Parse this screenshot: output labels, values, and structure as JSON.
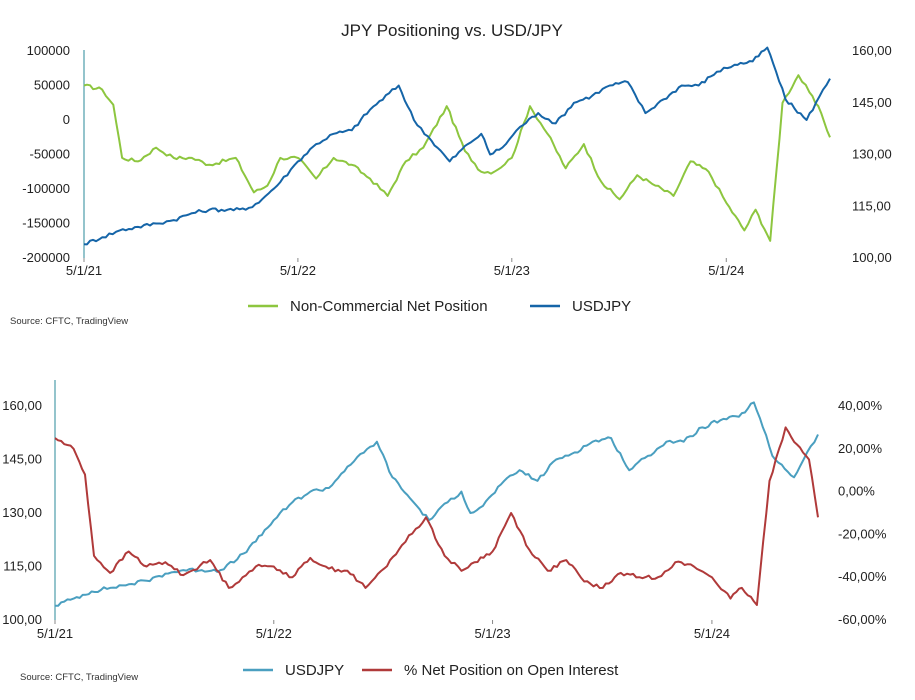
{
  "chart_data": [
    {
      "type": "line",
      "title": "JPY Positioning vs. USD/JPY",
      "source": "Source: CFTC, TradingView",
      "x_ticks": [
        "5/1/21",
        "5/1/22",
        "5/1/23",
        "5/1/24"
      ],
      "x_range": [
        "2021-05-01",
        "2024-10-25"
      ],
      "y_left": {
        "ticks": [
          "100000",
          "50000",
          "0",
          "-50000",
          "-100000",
          "-150000",
          "-200000"
        ],
        "range": [
          -200000,
          100000
        ]
      },
      "y_right": {
        "ticks": [
          "160,00",
          "145,00",
          "130,00",
          "115,00",
          "100,00"
        ],
        "range": [
          100,
          160
        ]
      },
      "series": [
        {
          "name": "Non-Commercial Net Position",
          "axis": "left",
          "color": "#8dc63f",
          "points": [
            [
              "2021-05-01",
              50000
            ],
            [
              "2021-06-01",
              44000
            ],
            [
              "2021-06-20",
              22000
            ],
            [
              "2021-07-05",
              -55000
            ],
            [
              "2021-08-01",
              -60000
            ],
            [
              "2021-09-01",
              -40000
            ],
            [
              "2021-10-01",
              -55000
            ],
            [
              "2021-11-01",
              -55000
            ],
            [
              "2021-12-01",
              -65000
            ],
            [
              "2022-01-15",
              -55000
            ],
            [
              "2022-02-15",
              -105000
            ],
            [
              "2022-03-10",
              -95000
            ],
            [
              "2022-04-01",
              -55000
            ],
            [
              "2022-05-01",
              -55000
            ],
            [
              "2022-06-01",
              -85000
            ],
            [
              "2022-07-01",
              -55000
            ],
            [
              "2022-08-01",
              -65000
            ],
            [
              "2022-09-01",
              -85000
            ],
            [
              "2022-10-01",
              -110000
            ],
            [
              "2022-11-01",
              -60000
            ],
            [
              "2022-12-01",
              -40000
            ],
            [
              "2023-01-10",
              20000
            ],
            [
              "2023-02-10",
              -45000
            ],
            [
              "2023-03-10",
              -75000
            ],
            [
              "2023-04-01",
              -75000
            ],
            [
              "2023-05-01",
              -55000
            ],
            [
              "2023-06-01",
              20000
            ],
            [
              "2023-07-01",
              -20000
            ],
            [
              "2023-08-01",
              -70000
            ],
            [
              "2023-09-01",
              -35000
            ],
            [
              "2023-10-01",
              -90000
            ],
            [
              "2023-11-01",
              -115000
            ],
            [
              "2023-12-01",
              -80000
            ],
            [
              "2024-01-01",
              -95000
            ],
            [
              "2024-02-01",
              -110000
            ],
            [
              "2024-03-01",
              -60000
            ],
            [
              "2024-04-01",
              -75000
            ],
            [
              "2024-05-01",
              -120000
            ],
            [
              "2024-06-01",
              -160000
            ],
            [
              "2024-06-20",
              -130000
            ],
            [
              "2024-07-15",
              -175000
            ],
            [
              "2024-08-05",
              25000
            ],
            [
              "2024-09-01",
              65000
            ],
            [
              "2024-09-20",
              40000
            ],
            [
              "2024-10-10",
              10000
            ],
            [
              "2024-10-25",
              -25000
            ]
          ]
        },
        {
          "name": "USDJPY",
          "axis": "right",
          "color": "#1565a8",
          "points": [
            [
              "2021-05-01",
              104
            ],
            [
              "2021-06-01",
              106
            ],
            [
              "2021-07-01",
              108
            ],
            [
              "2021-08-01",
              109
            ],
            [
              "2021-09-01",
              110
            ],
            [
              "2021-10-01",
              111
            ],
            [
              "2021-11-01",
              113
            ],
            [
              "2021-12-01",
              114
            ],
            [
              "2022-01-01",
              114
            ],
            [
              "2022-02-01",
              114
            ],
            [
              "2022-03-01",
              117
            ],
            [
              "2022-04-01",
              122
            ],
            [
              "2022-05-01",
              128
            ],
            [
              "2022-06-01",
              133
            ],
            [
              "2022-07-01",
              136
            ],
            [
              "2022-08-01",
              137
            ],
            [
              "2022-09-01",
              143
            ],
            [
              "2022-10-20",
              150
            ],
            [
              "2022-11-15",
              140
            ],
            [
              "2022-12-15",
              134
            ],
            [
              "2023-01-15",
              128
            ],
            [
              "2023-02-15",
              133
            ],
            [
              "2023-03-10",
              136
            ],
            [
              "2023-03-25",
              130
            ],
            [
              "2023-04-15",
              132
            ],
            [
              "2023-05-15",
              138
            ],
            [
              "2023-06-15",
              142
            ],
            [
              "2023-07-15",
              139
            ],
            [
              "2023-08-15",
              145
            ],
            [
              "2023-09-15",
              147
            ],
            [
              "2023-10-15",
              150
            ],
            [
              "2023-11-15",
              151
            ],
            [
              "2023-12-15",
              142
            ],
            [
              "2024-01-15",
              146
            ],
            [
              "2024-02-15",
              150
            ],
            [
              "2024-03-15",
              150
            ],
            [
              "2024-04-15",
              154
            ],
            [
              "2024-05-15",
              156
            ],
            [
              "2024-06-15",
              157
            ],
            [
              "2024-07-10",
              161
            ],
            [
              "2024-07-25",
              154
            ],
            [
              "2024-08-10",
              146
            ],
            [
              "2024-09-15",
              140
            ],
            [
              "2024-10-01",
              145
            ],
            [
              "2024-10-25",
              152
            ]
          ]
        }
      ]
    },
    {
      "type": "line",
      "title": "",
      "source": "Source: CFTC, TradingView",
      "x_ticks": [
        "5/1/21",
        "5/1/22",
        "5/1/23",
        "5/1/24"
      ],
      "x_range": [
        "2021-05-01",
        "2024-10-25"
      ],
      "y_left": {
        "ticks": [
          "160,00",
          "145,00",
          "130,00",
          "115,00",
          "100,00"
        ],
        "range": [
          100,
          160
        ]
      },
      "y_right": {
        "ticks": [
          "40,00%",
          "20,00%",
          "0,00%",
          "-20,00%",
          "-40,00%",
          "-60,00%"
        ],
        "range": [
          -60,
          40
        ]
      },
      "series": [
        {
          "name": "USDJPY",
          "axis": "left",
          "color": "#4a9fc0",
          "points": [
            [
              "2021-05-01",
              104
            ],
            [
              "2021-06-01",
              106
            ],
            [
              "2021-07-01",
              108
            ],
            [
              "2021-08-01",
              109
            ],
            [
              "2021-09-01",
              110
            ],
            [
              "2021-10-01",
              111
            ],
            [
              "2021-11-01",
              113
            ],
            [
              "2021-12-01",
              114
            ],
            [
              "2022-01-01",
              114
            ],
            [
              "2022-02-01",
              114
            ],
            [
              "2022-03-01",
              117
            ],
            [
              "2022-04-01",
              122
            ],
            [
              "2022-05-01",
              128
            ],
            [
              "2022-06-01",
              133
            ],
            [
              "2022-07-01",
              136
            ],
            [
              "2022-08-01",
              137
            ],
            [
              "2022-09-01",
              143
            ],
            [
              "2022-10-20",
              150
            ],
            [
              "2022-11-15",
              140
            ],
            [
              "2022-12-15",
              134
            ],
            [
              "2023-01-15",
              128
            ],
            [
              "2023-02-15",
              133
            ],
            [
              "2023-03-10",
              136
            ],
            [
              "2023-03-25",
              130
            ],
            [
              "2023-04-15",
              132
            ],
            [
              "2023-05-15",
              138
            ],
            [
              "2023-06-15",
              142
            ],
            [
              "2023-07-15",
              139
            ],
            [
              "2023-08-15",
              145
            ],
            [
              "2023-09-15",
              147
            ],
            [
              "2023-10-15",
              150
            ],
            [
              "2023-11-15",
              151
            ],
            [
              "2023-12-15",
              142
            ],
            [
              "2024-01-15",
              146
            ],
            [
              "2024-02-15",
              150
            ],
            [
              "2024-03-15",
              150
            ],
            [
              "2024-04-15",
              154
            ],
            [
              "2024-05-15",
              156
            ],
            [
              "2024-06-15",
              157
            ],
            [
              "2024-07-10",
              161
            ],
            [
              "2024-07-25",
              154
            ],
            [
              "2024-08-10",
              146
            ],
            [
              "2024-09-15",
              140
            ],
            [
              "2024-10-01",
              145
            ],
            [
              "2024-10-25",
              152
            ]
          ]
        },
        {
          "name": "% Net Position on Open Interest",
          "axis": "right",
          "color": "#b03a3a",
          "points": [
            [
              "2021-05-01",
              25
            ],
            [
              "2021-06-01",
              20
            ],
            [
              "2021-06-20",
              8
            ],
            [
              "2021-07-05",
              -30
            ],
            [
              "2021-08-01",
              -38
            ],
            [
              "2021-09-01",
              -28
            ],
            [
              "2021-10-01",
              -35
            ],
            [
              "2021-11-01",
              -33
            ],
            [
              "2021-12-01",
              -39
            ],
            [
              "2022-01-15",
              -32
            ],
            [
              "2022-02-15",
              -45
            ],
            [
              "2022-03-10",
              -40
            ],
            [
              "2022-04-01",
              -35
            ],
            [
              "2022-05-01",
              -35
            ],
            [
              "2022-06-01",
              -40
            ],
            [
              "2022-07-01",
              -31
            ],
            [
              "2022-08-01",
              -36
            ],
            [
              "2022-09-01",
              -37
            ],
            [
              "2022-10-01",
              -45
            ],
            [
              "2022-11-01",
              -36
            ],
            [
              "2022-12-01",
              -25
            ],
            [
              "2023-01-10",
              -12
            ],
            [
              "2023-02-10",
              -30
            ],
            [
              "2023-03-10",
              -37
            ],
            [
              "2023-04-01",
              -33
            ],
            [
              "2023-05-01",
              -28
            ],
            [
              "2023-06-01",
              -10
            ],
            [
              "2023-07-01",
              -27
            ],
            [
              "2023-08-01",
              -37
            ],
            [
              "2023-09-01",
              -32
            ],
            [
              "2023-10-01",
              -42
            ],
            [
              "2023-11-01",
              -45
            ],
            [
              "2023-12-01",
              -38
            ],
            [
              "2024-01-01",
              -40
            ],
            [
              "2024-02-01",
              -40
            ],
            [
              "2024-03-01",
              -33
            ],
            [
              "2024-04-01",
              -35
            ],
            [
              "2024-05-01",
              -40
            ],
            [
              "2024-06-01",
              -50
            ],
            [
              "2024-06-20",
              -45
            ],
            [
              "2024-07-15",
              -53
            ],
            [
              "2024-08-05",
              5
            ],
            [
              "2024-09-01",
              30
            ],
            [
              "2024-09-20",
              22
            ],
            [
              "2024-10-10",
              15
            ],
            [
              "2024-10-25",
              -12
            ]
          ]
        }
      ]
    }
  ]
}
